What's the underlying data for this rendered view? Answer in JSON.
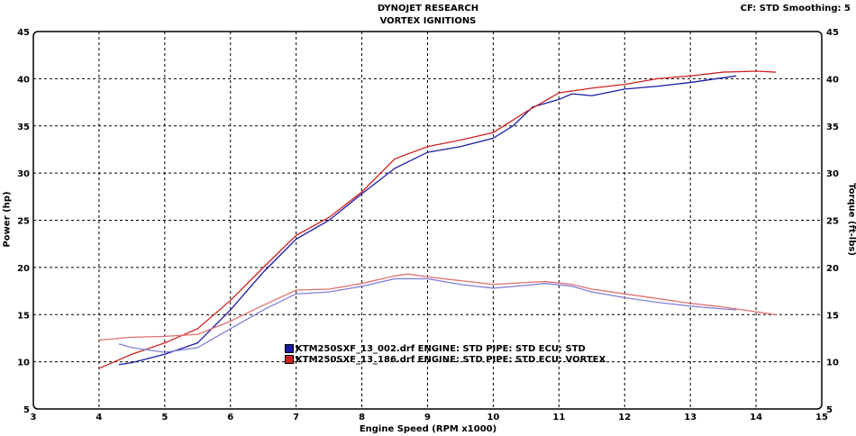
{
  "chart_data": {
    "type": "line",
    "title": "DYNOJET RESEARCH",
    "subtitle": "VORTEX IGNITIONS",
    "corner_note": "CF: STD  Smoothing: 5",
    "xlabel": "Engine Speed (RPM x1000)",
    "ylabel": "Power (hp)",
    "y2label": "Torque (ft-lbs)",
    "xlim": [
      3,
      15
    ],
    "ylim": [
      5,
      45
    ],
    "y2lim": [
      5,
      45
    ],
    "xticks": [
      3,
      4,
      5,
      6,
      7,
      8,
      9,
      10,
      11,
      12,
      13,
      14,
      15
    ],
    "yticks": [
      5,
      10,
      15,
      20,
      25,
      30,
      35,
      40,
      45
    ],
    "grid": true,
    "legend": [
      {
        "label": "KTM250SXF_13_002.drf ENGINE: STD PIPE: STD ECU: STD",
        "color": "#1a1aa8"
      },
      {
        "label": "KTM250SXF_13_186.drf ENGINE: STD PIPE: STD ECU: VORTEX",
        "color": "#d02020"
      }
    ],
    "series": [
      {
        "name": "Power STD",
        "color": "#1a1aa8",
        "x": [
          4.3,
          4.5,
          5.0,
          5.5,
          6.0,
          6.5,
          7.0,
          7.5,
          8.0,
          8.5,
          9.0,
          9.5,
          10.0,
          10.3,
          10.6,
          11.0,
          11.2,
          11.5,
          12.0,
          12.5,
          13.0,
          13.5,
          13.7
        ],
        "y": [
          9.7,
          9.9,
          10.8,
          12,
          15.5,
          19.5,
          23,
          25,
          27.8,
          30.5,
          32.2,
          32.8,
          33.7,
          35,
          37,
          37.8,
          38.4,
          38.2,
          38.9,
          39.2,
          39.6,
          40.1,
          40.3
        ]
      },
      {
        "name": "Power VORTEX",
        "color": "#d02020",
        "x": [
          4.0,
          4.5,
          5.0,
          5.5,
          6.0,
          6.5,
          7.0,
          7.5,
          8.0,
          8.5,
          9.0,
          9.5,
          10.0,
          10.5,
          11.0,
          11.5,
          12.0,
          12.5,
          13.0,
          13.5,
          14.0,
          14.3
        ],
        "y": [
          9.3,
          10.8,
          12,
          13.5,
          16.5,
          20,
          23.4,
          25.3,
          28,
          31.5,
          32.8,
          33.5,
          34.3,
          36.5,
          38.5,
          39,
          39.4,
          40,
          40.3,
          40.7,
          40.8,
          40.7
        ]
      },
      {
        "name": "Torque STD",
        "color": "#8080d8",
        "x": [
          4.3,
          4.5,
          5.0,
          5.5,
          6.0,
          6.5,
          7.0,
          7.5,
          8.0,
          8.5,
          9.0,
          9.5,
          10.0,
          10.5,
          10.8,
          11.2,
          11.5,
          12.0,
          12.5,
          13.0,
          13.5,
          13.7
        ],
        "y": [
          11.9,
          11.5,
          11,
          11.5,
          13.5,
          15.5,
          17.2,
          17.4,
          18,
          18.8,
          18.8,
          18.2,
          17.8,
          18.1,
          18.3,
          18,
          17.4,
          16.8,
          16.3,
          15.9,
          15.6,
          15.5
        ]
      },
      {
        "name": "Torque VORTEX",
        "color": "#e07070",
        "x": [
          4.0,
          4.5,
          5.0,
          5.5,
          6.0,
          6.5,
          7.0,
          7.5,
          8.0,
          8.5,
          8.7,
          9.0,
          9.5,
          10.0,
          10.5,
          10.8,
          11.2,
          11.5,
          12.0,
          12.5,
          13.0,
          13.5,
          14.0,
          14.3
        ],
        "y": [
          12.3,
          12.6,
          12.7,
          12.9,
          14.3,
          16,
          17.6,
          17.7,
          18.3,
          19.1,
          19.3,
          19,
          18.6,
          18.2,
          18.4,
          18.5,
          18.2,
          17.7,
          17.2,
          16.7,
          16.2,
          15.8,
          15.3,
          15.0
        ]
      }
    ]
  }
}
